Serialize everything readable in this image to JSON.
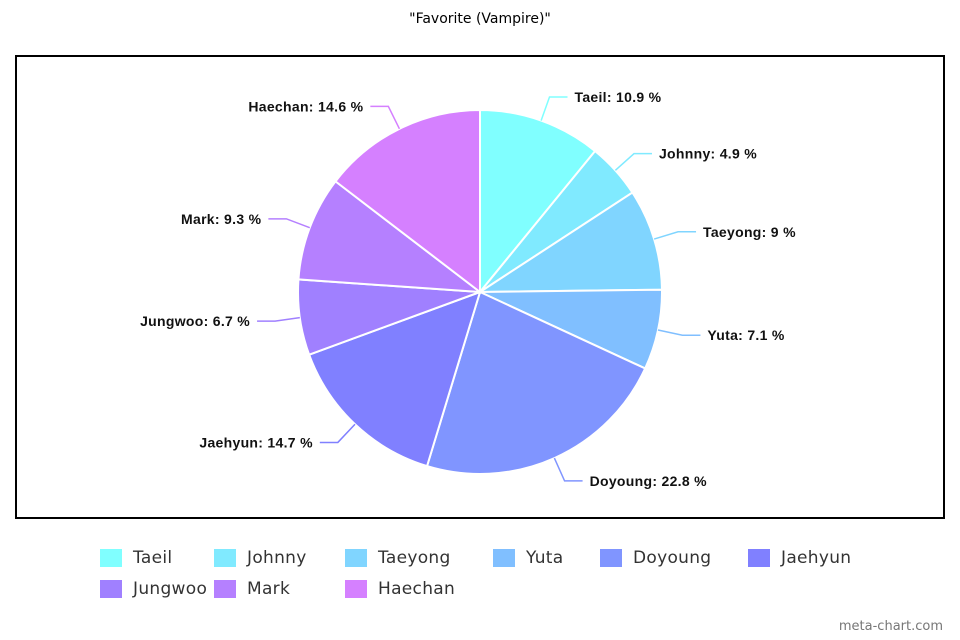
{
  "chart_data": {
    "type": "pie",
    "title": "\"Favorite (Vampire)\"",
    "slices": [
      {
        "label": "Taeil",
        "value": 10.9,
        "display": "Taeil: 10.9 %",
        "color": "#80FFFF"
      },
      {
        "label": "Johnny",
        "value": 4.9,
        "display": "Johnny: 4.9 %",
        "color": "#80EAFF"
      },
      {
        "label": "Taeyong",
        "value": 9,
        "display": "Taeyong: 9 %",
        "color": "#80D5FF"
      },
      {
        "label": "Yuta",
        "value": 7.1,
        "display": "Yuta: 7.1 %",
        "color": "#80BFFF"
      },
      {
        "label": "Doyoung",
        "value": 22.8,
        "display": "Doyoung: 22.8 %",
        "color": "#8095FF"
      },
      {
        "label": "Jaehyun",
        "value": 14.7,
        "display": "Jaehyun: 14.7 %",
        "color": "#8080FF"
      },
      {
        "label": "Jungwoo",
        "value": 6.7,
        "display": "Jungwoo: 6.7 %",
        "color": "#A080FF"
      },
      {
        "label": "Mark",
        "value": 9.3,
        "display": "Mark: 9.3 %",
        "color": "#B580FF"
      },
      {
        "label": "Haechan",
        "value": 14.6,
        "display": "Haechan: 14.6 %",
        "color": "#D580FF"
      }
    ],
    "legend_position": "bottom"
  },
  "watermark": "meta-chart.com"
}
